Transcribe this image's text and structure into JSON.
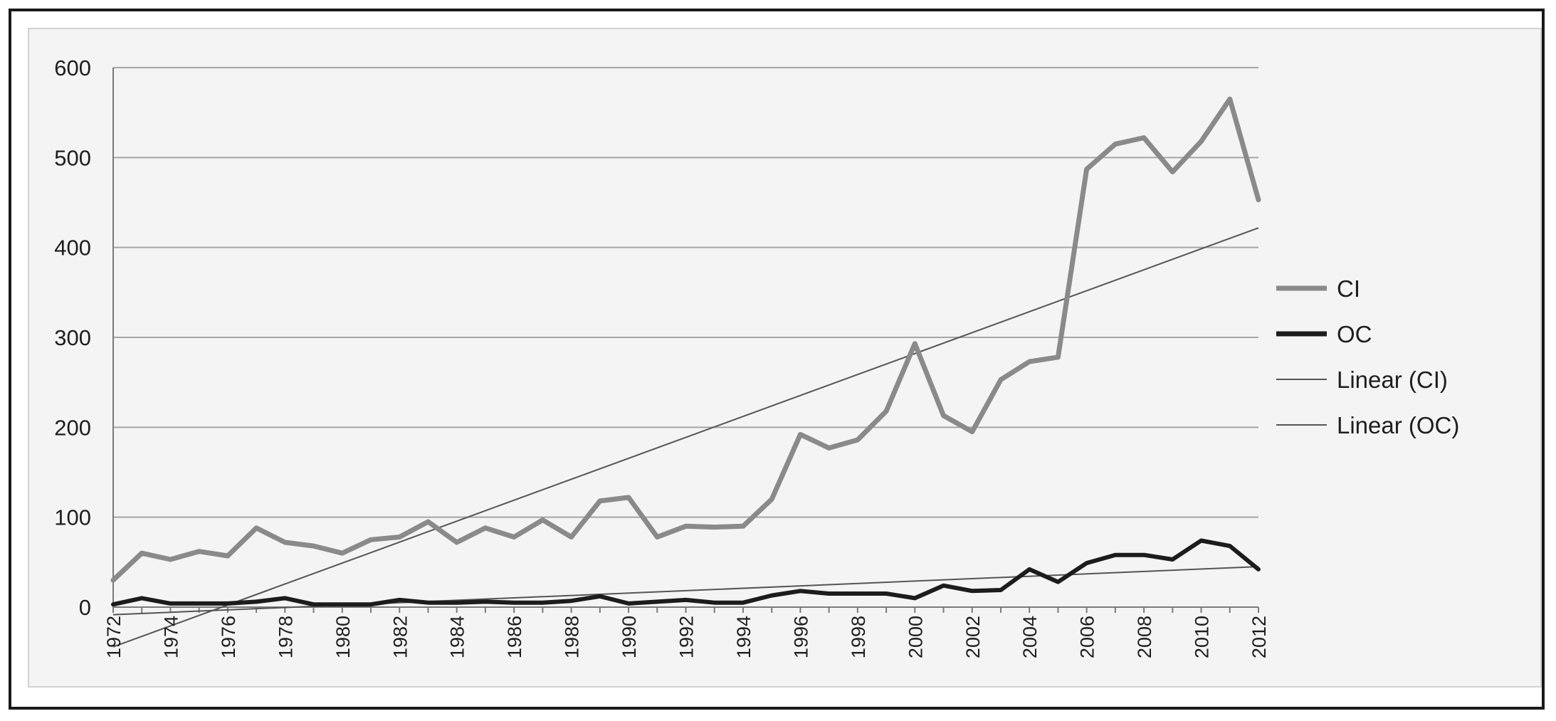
{
  "chart_data": {
    "type": "line",
    "title": "",
    "xlabel": "",
    "ylabel": "",
    "ylim": [
      0,
      600
    ],
    "y_ticks": [
      "0",
      "100",
      "200",
      "300",
      "400",
      "500",
      "600"
    ],
    "x": [
      1972,
      1973,
      1974,
      1975,
      1976,
      1977,
      1978,
      1979,
      1980,
      1981,
      1982,
      1983,
      1984,
      1985,
      1986,
      1987,
      1988,
      1989,
      1990,
      1991,
      1992,
      1993,
      1994,
      1995,
      1996,
      1997,
      1998,
      1999,
      2000,
      2001,
      2002,
      2003,
      2004,
      2005,
      2006,
      2007,
      2008,
      2009,
      2010,
      2011,
      2012
    ],
    "x_tick_labels": [
      "1972",
      "1974",
      "1976",
      "1978",
      "1980",
      "1982",
      "1984",
      "1986",
      "1988",
      "1990",
      "1992",
      "1994",
      "1996",
      "1998",
      "2000",
      "2002",
      "2004",
      "2006",
      "2008",
      "2010",
      "2012"
    ],
    "grid": "horizontal",
    "legend_position": "right",
    "series": [
      {
        "name": "CI",
        "kind": "data",
        "color": "#8a8a8a",
        "values": [
          30,
          60,
          53,
          62,
          57,
          88,
          72,
          68,
          60,
          75,
          78,
          95,
          72,
          88,
          78,
          97,
          78,
          118,
          122,
          78,
          90,
          89,
          90,
          120,
          192,
          177,
          186,
          218,
          293,
          213,
          195,
          253,
          273,
          278,
          487,
          515,
          522,
          484,
          518,
          565,
          453
        ]
      },
      {
        "name": "OC",
        "kind": "data",
        "color": "#1c1c1c",
        "values": [
          3,
          10,
          4,
          4,
          4,
          6,
          10,
          3,
          3,
          3,
          8,
          5,
          5,
          6,
          5,
          5,
          7,
          12,
          4,
          6,
          8,
          5,
          5,
          13,
          18,
          15,
          15,
          15,
          10,
          24,
          18,
          19,
          42,
          28,
          49,
          58,
          58,
          53,
          74,
          68,
          42
        ]
      },
      {
        "name": "Linear (CI)",
        "kind": "trend",
        "of": "CI",
        "color": "#555555"
      },
      {
        "name": "Linear (OC)",
        "kind": "trend",
        "of": "OC",
        "color": "#555555"
      }
    ]
  }
}
